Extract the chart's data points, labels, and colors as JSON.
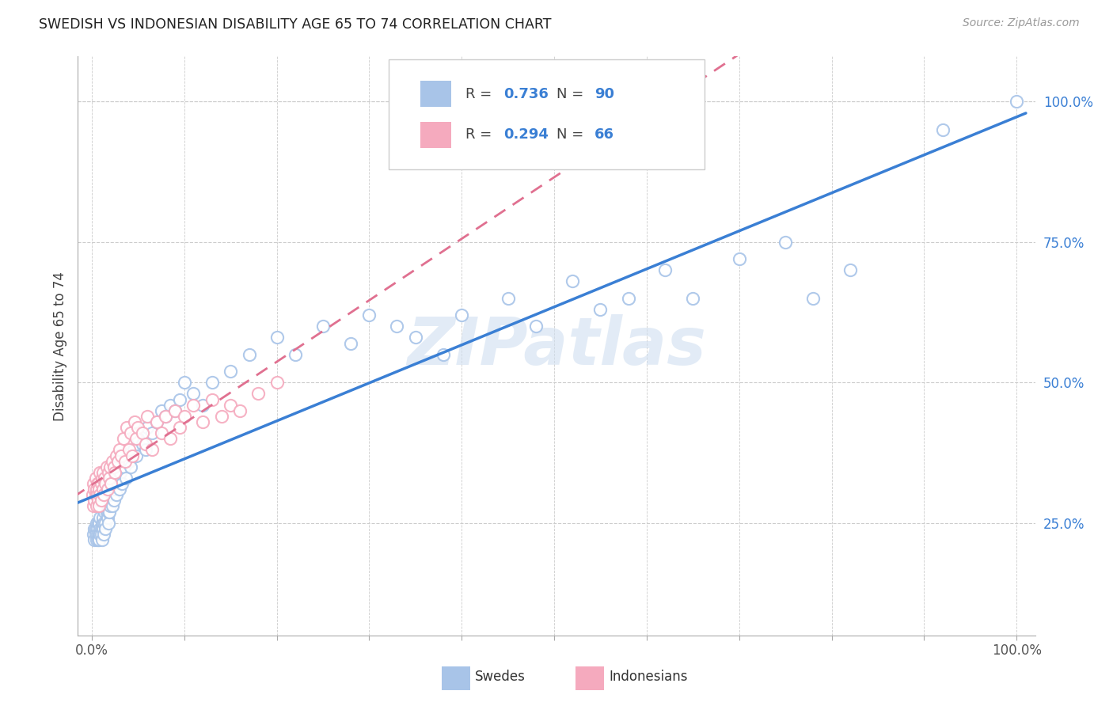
{
  "title": "SWEDISH VS INDONESIAN DISABILITY AGE 65 TO 74 CORRELATION CHART",
  "source": "Source: ZipAtlas.com",
  "ylabel": "Disability Age 65 to 74",
  "swedes_R": 0.736,
  "swedes_N": 90,
  "indonesians_R": 0.294,
  "indonesians_N": 66,
  "swedes_color": "#a8c4e8",
  "indonesians_color": "#f5aabe",
  "swedes_line_color": "#3a7fd4",
  "indonesians_line_color": "#e07090",
  "tick_color": "#3a7fd4",
  "watermark": "ZIPatlas",
  "background_color": "#ffffff",
  "legend_label_swedes": "Swedes",
  "legend_label_indonesians": "Indonesians",
  "x_minor_ticks": [
    0.0,
    0.1,
    0.2,
    0.3,
    0.4,
    0.5,
    0.6,
    0.7,
    0.8,
    0.9,
    1.0
  ],
  "y_ticks": [
    0.25,
    0.5,
    0.75,
    1.0
  ],
  "y_tick_labels": [
    "25.0%",
    "50.0%",
    "75.0%",
    "100.0%"
  ],
  "swedes_x": [
    0.002,
    0.003,
    0.003,
    0.004,
    0.004,
    0.005,
    0.005,
    0.006,
    0.006,
    0.007,
    0.007,
    0.008,
    0.008,
    0.008,
    0.009,
    0.009,
    0.009,
    0.01,
    0.01,
    0.011,
    0.011,
    0.012,
    0.012,
    0.013,
    0.013,
    0.014,
    0.015,
    0.015,
    0.016,
    0.017,
    0.018,
    0.018,
    0.019,
    0.02,
    0.021,
    0.022,
    0.023,
    0.024,
    0.025,
    0.026,
    0.027,
    0.028,
    0.03,
    0.031,
    0.033,
    0.035,
    0.037,
    0.04,
    0.042,
    0.045,
    0.048,
    0.05,
    0.055,
    0.058,
    0.06,
    0.065,
    0.07,
    0.075,
    0.08,
    0.085,
    0.09,
    0.095,
    0.1,
    0.11,
    0.12,
    0.13,
    0.15,
    0.17,
    0.2,
    0.22,
    0.25,
    0.28,
    0.3,
    0.33,
    0.35,
    0.38,
    0.4,
    0.45,
    0.48,
    0.52,
    0.55,
    0.58,
    0.62,
    0.65,
    0.7,
    0.75,
    0.78,
    0.82,
    0.92,
    1.0
  ],
  "swedes_y": [
    0.23,
    0.24,
    0.22,
    0.24,
    0.23,
    0.25,
    0.22,
    0.24,
    0.23,
    0.25,
    0.22,
    0.23,
    0.25,
    0.22,
    0.24,
    0.23,
    0.26,
    0.24,
    0.23,
    0.25,
    0.22,
    0.24,
    0.26,
    0.23,
    0.25,
    0.27,
    0.25,
    0.24,
    0.27,
    0.26,
    0.27,
    0.25,
    0.27,
    0.28,
    0.29,
    0.28,
    0.3,
    0.29,
    0.31,
    0.32,
    0.3,
    0.33,
    0.31,
    0.34,
    0.32,
    0.35,
    0.33,
    0.36,
    0.35,
    0.38,
    0.37,
    0.4,
    0.39,
    0.38,
    0.42,
    0.41,
    0.43,
    0.45,
    0.44,
    0.46,
    0.45,
    0.47,
    0.5,
    0.48,
    0.46,
    0.5,
    0.52,
    0.55,
    0.58,
    0.55,
    0.6,
    0.57,
    0.62,
    0.6,
    0.58,
    0.55,
    0.62,
    0.65,
    0.6,
    0.68,
    0.63,
    0.65,
    0.7,
    0.65,
    0.72,
    0.75,
    0.65,
    0.7,
    0.95,
    1.0
  ],
  "indonesians_x": [
    0.001,
    0.002,
    0.002,
    0.003,
    0.003,
    0.004,
    0.004,
    0.005,
    0.005,
    0.006,
    0.006,
    0.007,
    0.007,
    0.008,
    0.008,
    0.009,
    0.009,
    0.01,
    0.01,
    0.011,
    0.012,
    0.012,
    0.013,
    0.014,
    0.015,
    0.016,
    0.017,
    0.018,
    0.019,
    0.02,
    0.021,
    0.022,
    0.024,
    0.025,
    0.027,
    0.028,
    0.03,
    0.032,
    0.034,
    0.036,
    0.038,
    0.04,
    0.042,
    0.044,
    0.046,
    0.048,
    0.05,
    0.055,
    0.058,
    0.06,
    0.065,
    0.07,
    0.075,
    0.08,
    0.085,
    0.09,
    0.095,
    0.1,
    0.11,
    0.12,
    0.13,
    0.14,
    0.15,
    0.16,
    0.18,
    0.2
  ],
  "indonesians_y": [
    0.3,
    0.32,
    0.28,
    0.31,
    0.29,
    0.3,
    0.33,
    0.31,
    0.28,
    0.32,
    0.3,
    0.29,
    0.32,
    0.31,
    0.28,
    0.34,
    0.3,
    0.32,
    0.29,
    0.33,
    0.31,
    0.34,
    0.3,
    0.33,
    0.32,
    0.35,
    0.31,
    0.34,
    0.33,
    0.35,
    0.32,
    0.36,
    0.35,
    0.34,
    0.37,
    0.36,
    0.38,
    0.37,
    0.4,
    0.36,
    0.42,
    0.38,
    0.41,
    0.37,
    0.43,
    0.4,
    0.42,
    0.41,
    0.39,
    0.44,
    0.38,
    0.43,
    0.41,
    0.44,
    0.4,
    0.45,
    0.42,
    0.44,
    0.46,
    0.43,
    0.47,
    0.44,
    0.46,
    0.45,
    0.48,
    0.5
  ]
}
